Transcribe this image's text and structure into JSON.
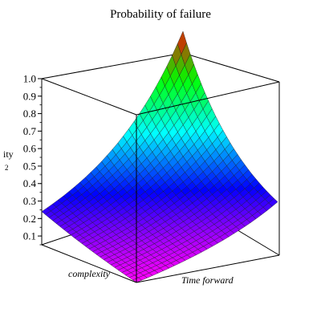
{
  "chart_data": {
    "type": "surface3d",
    "title": "Probability of failure",
    "xlabel": "complexity",
    "ylabel": "Time forward",
    "zlabel": "ity\n2",
    "zticks": [
      "1.0",
      "0.9",
      "0.8",
      "0.7",
      "0.6",
      "0.5",
      "0.4",
      "0.3",
      "0.2",
      "0.1"
    ],
    "zlim": [
      0.05,
      1.0
    ],
    "corner_values": {
      "complexity_max_time_min": 0.24,
      "complexity_min_time_min": 0.05,
      "complexity_min_time_max": 0.24,
      "complexity_max_time_max": 1.0
    },
    "grid_lines": 26,
    "colormap": [
      "#ff00ff",
      "#0000ff",
      "#00ffff",
      "#00ff00",
      "#ff0000"
    ]
  }
}
